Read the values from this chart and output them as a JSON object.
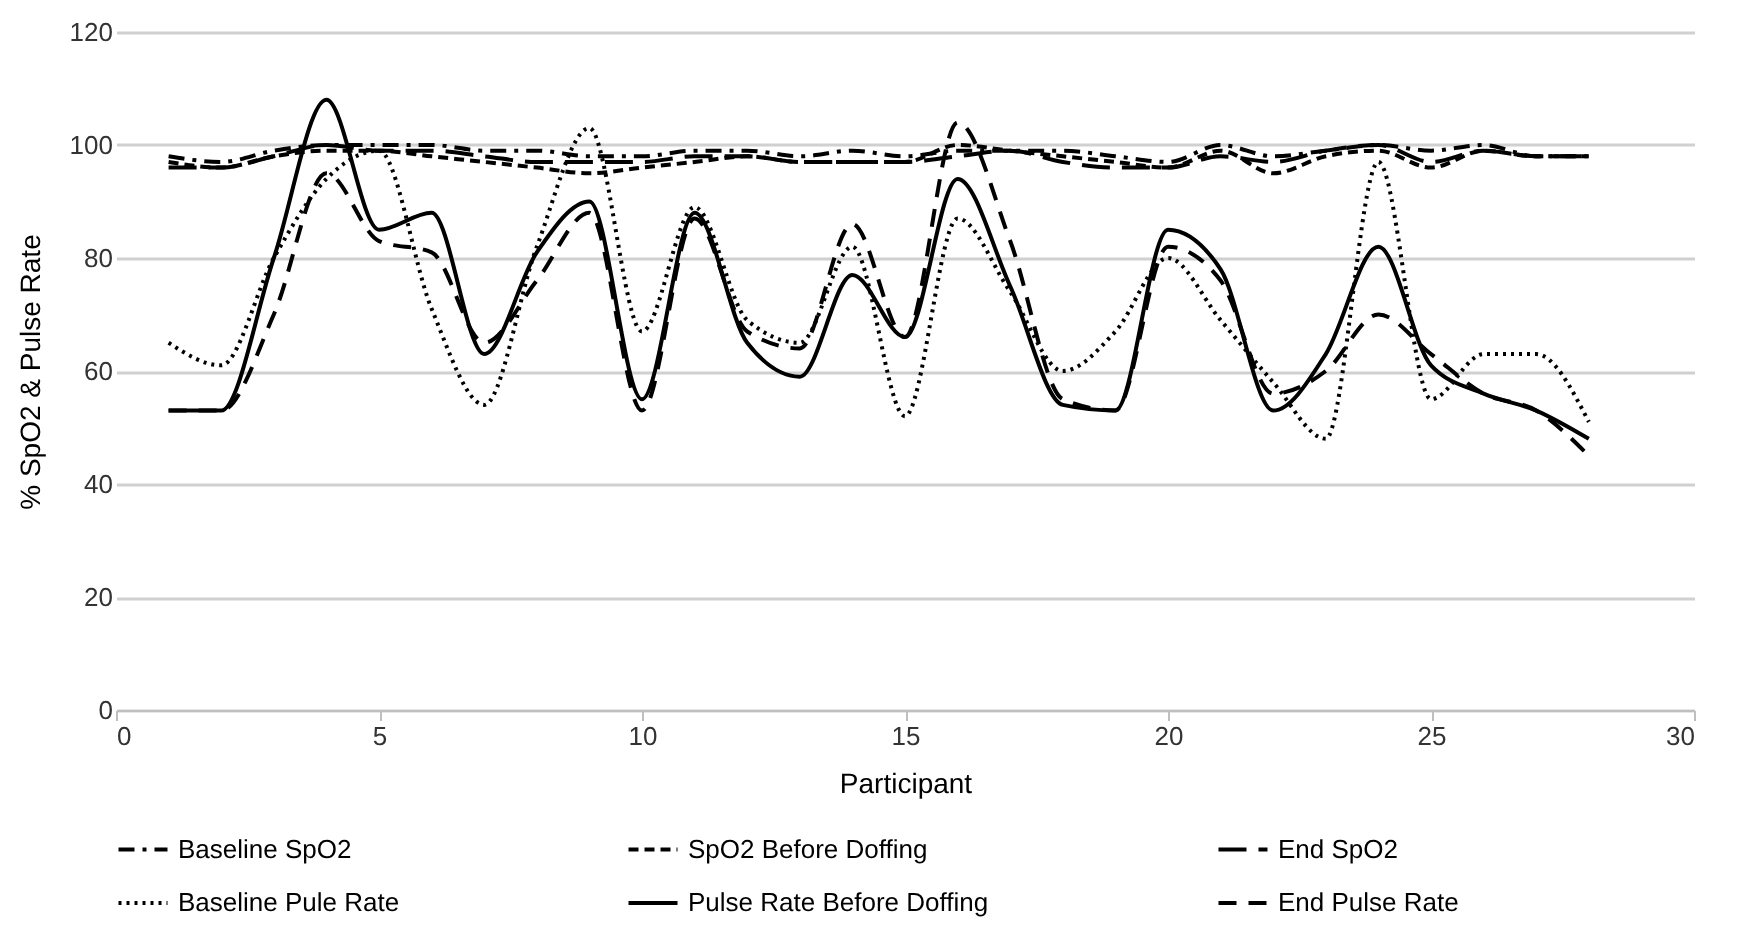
{
  "chart_data": {
    "type": "line",
    "xlabel": "Participant",
    "ylabel": "% SpO2 & Pulse Rate",
    "x": [
      1,
      2,
      3,
      4,
      5,
      6,
      7,
      8,
      9,
      10,
      11,
      12,
      13,
      14,
      15,
      16,
      17,
      18,
      19,
      20,
      21,
      22,
      23,
      24,
      25,
      26,
      27,
      28
    ],
    "xlim": [
      0,
      30
    ],
    "xticks": [
      0,
      5,
      10,
      15,
      20,
      25,
      30
    ],
    "ylim": [
      0,
      120
    ],
    "yticks": [
      0,
      20,
      40,
      60,
      80,
      100,
      120
    ],
    "grid": "y",
    "legend": "bottom",
    "marker": "none",
    "series": [
      {
        "name": "Baseline SpO2",
        "color": "#000000",
        "line_style": "dashdot",
        "values": [
          98,
          97,
          99,
          100,
          100,
          100,
          99,
          99,
          98,
          98,
          99,
          99,
          98,
          99,
          98,
          99,
          99,
          99,
          98,
          97,
          100,
          98,
          99,
          100,
          99,
          100,
          98,
          98
        ]
      },
      {
        "name": "SpO2 Before Doffing",
        "color": "#000000",
        "line_style": "dashed",
        "values": [
          97,
          96,
          98,
          99,
          99,
          98,
          97,
          96,
          95,
          96,
          97,
          98,
          97,
          97,
          97,
          100,
          99,
          98,
          97,
          96,
          99,
          95,
          98,
          99,
          96,
          99,
          98,
          98
        ]
      },
      {
        "name": "End SpO2",
        "color": "#000000",
        "line_style": "longdash",
        "values": [
          96,
          96,
          98,
          100,
          99,
          99,
          98,
          97,
          97,
          97,
          98,
          98,
          97,
          97,
          97,
          98,
          99,
          97,
          96,
          96,
          98,
          97,
          99,
          100,
          97,
          99,
          98,
          98
        ]
      },
      {
        "name": "Baseline Pule Rate",
        "color": "#000000",
        "line_style": "dotted",
        "values": [
          65,
          61,
          80,
          94,
          99,
          71,
          54,
          82,
          103,
          67,
          89,
          69,
          65,
          82,
          52,
          87,
          74,
          60,
          67,
          80,
          69,
          58,
          48,
          97,
          55,
          63,
          63,
          51
        ]
      },
      {
        "name": "Pulse Rate Before Doffing",
        "color": "#000000",
        "line_style": "solid",
        "values": [
          53,
          53,
          80,
          108,
          85,
          88,
          63,
          81,
          90,
          55,
          88,
          65,
          59,
          77,
          66,
          94,
          75,
          54,
          53,
          85,
          78,
          53,
          63,
          82,
          61,
          56,
          53,
          48
        ]
      },
      {
        "name": "End Pulse Rate",
        "color": "#000000",
        "line_style": "dashed2",
        "values": [
          53,
          53,
          70,
          95,
          83,
          81,
          65,
          76,
          88,
          53,
          87,
          67,
          64,
          86,
          66,
          104,
          83,
          55,
          53,
          82,
          76,
          56,
          60,
          70,
          63,
          56,
          53,
          45
        ]
      }
    ]
  }
}
